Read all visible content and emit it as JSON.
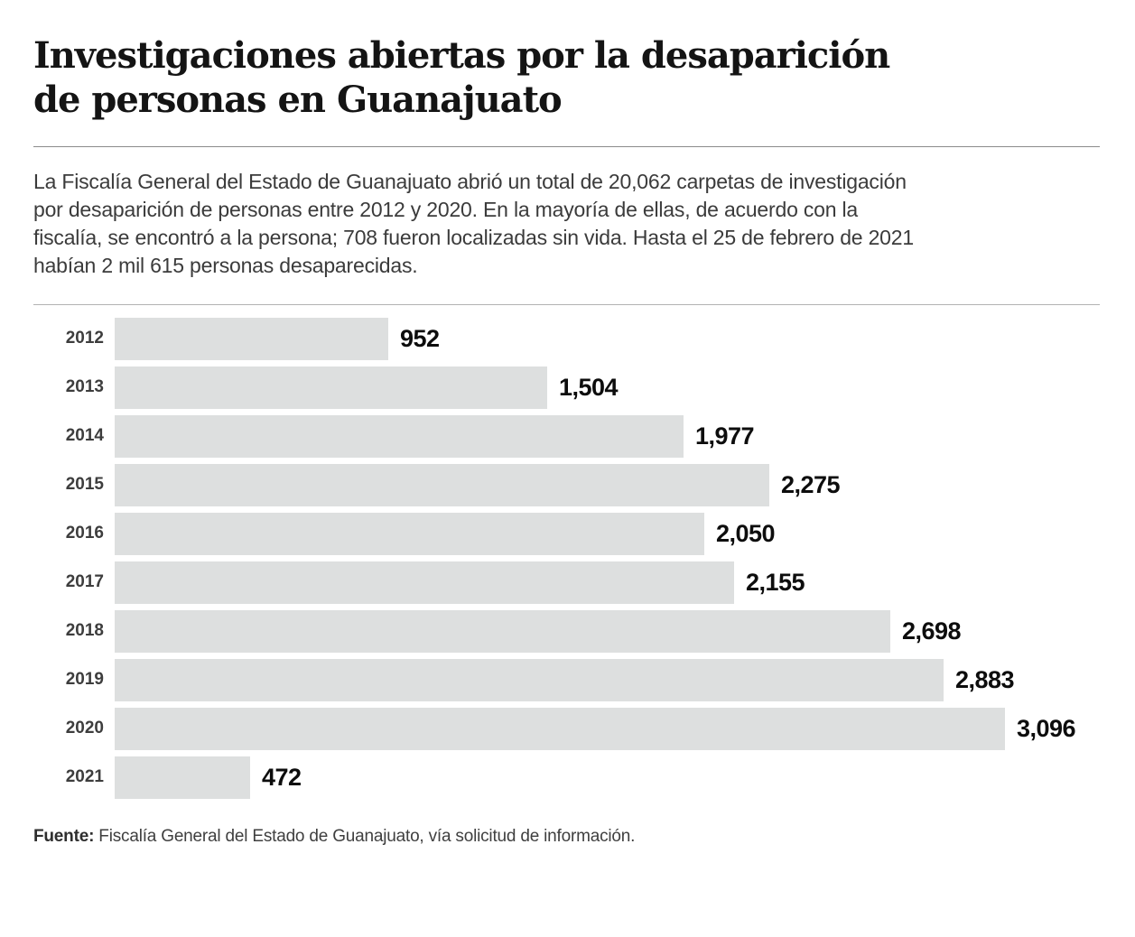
{
  "title": "Investigaciones abiertas por la desaparición\nde personas en Guanajuato",
  "description": "La Fiscalía General del Estado de Guanajuato abrió un total de 20,062 carpetas de investigación\npor desaparición de personas entre 2012 y 2020. En la mayoría de ellas, de acuerdo con la\nfiscalía, se encontró a la persona; 708 fueron localizadas sin vida. Hasta el 25 de febrero de 2021\nhabían 2 mil 615 personas desaparecidas.",
  "source": {
    "label": "Fuente:",
    "text": " Fiscalía General del Estado de Guanajuato, vía solicitud de información."
  },
  "chart_data": {
    "type": "bar",
    "orientation": "horizontal",
    "title": "Investigaciones abiertas por la desaparición de personas en Guanajuato",
    "categories": [
      "2012",
      "2013",
      "2014",
      "2015",
      "2016",
      "2017",
      "2018",
      "2019",
      "2020",
      "2021"
    ],
    "values": [
      952,
      1504,
      1977,
      2275,
      2050,
      2155,
      2698,
      2883,
      3096,
      472
    ],
    "value_labels": [
      "952",
      "1,504",
      "1,977",
      "2,275",
      "2,050",
      "2,155",
      "2,698",
      "2,883",
      "3,096",
      "472"
    ],
    "xlabel": "",
    "ylabel": "",
    "xlim": [
      0,
      3096
    ],
    "xmax": 3096,
    "grid": false,
    "legend": false,
    "bar_color": "#dddfdf",
    "category_label_color": "#3d3d3d",
    "value_label_color": "#0d0d0d"
  }
}
